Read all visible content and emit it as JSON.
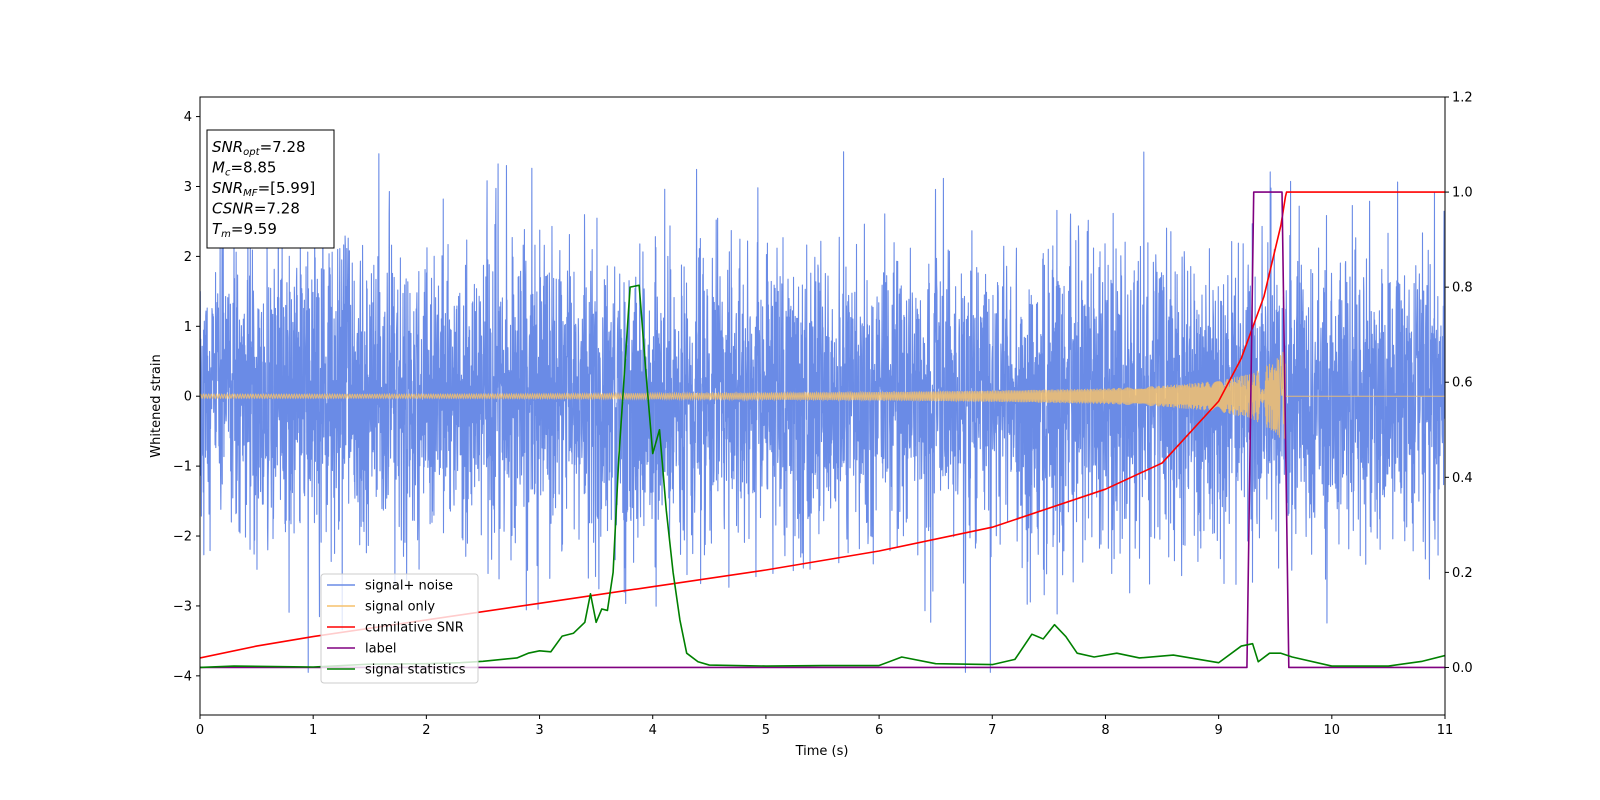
{
  "chart_data": {
    "type": "line",
    "xlabel": "Time (s)",
    "ylabel": "Whitened strain",
    "xlim": [
      0,
      11
    ],
    "ylim_left": [
      -4.56,
      4.28
    ],
    "ylim_right": [
      -0.1,
      1.2
    ],
    "x_ticks": [
      0,
      1,
      2,
      3,
      4,
      5,
      6,
      7,
      8,
      9,
      10,
      11
    ],
    "y_ticks_left": [
      -4,
      -3,
      -2,
      -1,
      0,
      1,
      2,
      3,
      4
    ],
    "y_ticks_right": [
      0.0,
      0.2,
      0.4,
      0.6,
      0.8,
      1.0,
      1.2
    ],
    "x_tick_labels": [
      "0",
      "1",
      "2",
      "3",
      "4",
      "5",
      "6",
      "7",
      "8",
      "9",
      "10",
      "11"
    ],
    "y_tick_labels_left": [
      "−4",
      "−3",
      "−2",
      "−1",
      "0",
      "1",
      "2",
      "3",
      "4"
    ],
    "y_tick_labels_right": [
      "0.0",
      "0.2",
      "0.4",
      "0.6",
      "0.8",
      "1.0",
      "1.2"
    ],
    "grid": false,
    "legend_position": "lower-left",
    "colors": {
      "signal_noise": "#6a8be6",
      "signal_only": "#f5c16c",
      "cumulative_snr": "#ff0000",
      "label": "#800080",
      "signal_statistics": "#008000"
    },
    "series": [
      {
        "name": "signal+ noise",
        "axis": "left",
        "note": "dense whitened noise, approx. Gaussian, extremes about -3.95 to 3.88",
        "envelope_y": [
          -3.95,
          3.88
        ]
      },
      {
        "name": "signal only",
        "axis": "left",
        "amplitude_x": [
          0,
          2,
          4,
          6,
          7,
          8,
          8.5,
          9,
          9.3,
          9.5,
          9.59,
          9.6,
          11
        ],
        "amplitude_y": [
          0.03,
          0.03,
          0.04,
          0.06,
          0.08,
          0.11,
          0.15,
          0.22,
          0.33,
          0.52,
          0.7,
          0,
          0
        ]
      },
      {
        "name": "cumilative SNR",
        "axis": "right",
        "x": [
          0,
          0.5,
          1,
          2,
          3,
          4,
          5,
          6,
          7,
          8,
          8.5,
          9,
          9.2,
          9.4,
          9.5,
          9.55,
          9.59,
          9.6,
          10,
          11
        ],
        "y": [
          0.02,
          0.045,
          0.065,
          0.1,
          0.135,
          0.17,
          0.205,
          0.245,
          0.295,
          0.375,
          0.43,
          0.56,
          0.65,
          0.78,
          0.88,
          0.93,
          0.99,
          1.0,
          1.0,
          1.0
        ]
      },
      {
        "name": "label",
        "axis": "right",
        "x": [
          0,
          9.25,
          9.31,
          9.56,
          9.62,
          11
        ],
        "y": [
          0,
          0,
          1,
          1,
          0,
          0
        ]
      },
      {
        "name": "signal statistics",
        "axis": "right",
        "x": [
          0,
          0.3,
          1,
          1.5,
          2,
          2.3,
          2.5,
          2.8,
          2.9,
          3.0,
          3.1,
          3.2,
          3.3,
          3.4,
          3.45,
          3.5,
          3.55,
          3.6,
          3.65,
          3.7,
          3.8,
          3.88,
          3.94,
          4.0,
          4.06,
          4.12,
          4.18,
          4.24,
          4.3,
          4.4,
          4.5,
          5,
          5.5,
          6,
          6.2,
          6.5,
          7,
          7.2,
          7.35,
          7.45,
          7.55,
          7.65,
          7.75,
          7.9,
          8.1,
          8.3,
          8.6,
          9.0,
          9.2,
          9.3,
          9.35,
          9.45,
          9.55,
          9.65,
          10,
          10.5,
          10.8,
          11
        ],
        "y": [
          0.0,
          0.003,
          0.001,
          0.007,
          0.008,
          0.01,
          0.013,
          0.02,
          0.03,
          0.035,
          0.033,
          0.066,
          0.072,
          0.095,
          0.155,
          0.095,
          0.123,
          0.12,
          0.2,
          0.44,
          0.8,
          0.804,
          0.62,
          0.45,
          0.5,
          0.33,
          0.2,
          0.1,
          0.03,
          0.012,
          0.005,
          0.003,
          0.004,
          0.004,
          0.022,
          0.008,
          0.006,
          0.017,
          0.07,
          0.06,
          0.09,
          0.065,
          0.03,
          0.022,
          0.03,
          0.02,
          0.026,
          0.01,
          0.045,
          0.05,
          0.012,
          0.03,
          0.03,
          0.022,
          0.003,
          0.003,
          0.013,
          0.025
        ]
      }
    ],
    "legend": [
      {
        "label": "signal+ noise",
        "color": "#6a8be6"
      },
      {
        "label": "signal only",
        "color": "#f5c16c"
      },
      {
        "label": "cumilative SNR",
        "color": "#ff0000"
      },
      {
        "label": "label",
        "color": "#800080"
      },
      {
        "label": "signal statistics",
        "color": "#008000"
      }
    ],
    "annotation": [
      {
        "base": "SNR",
        "sub": "opt",
        "value": "=7.28"
      },
      {
        "base": "M",
        "sub": "c",
        "value": "=8.85"
      },
      {
        "base": "SNR",
        "sub": "MF",
        "value": "=[5.99]"
      },
      {
        "base": "CSNR",
        "sub": "",
        "value": "=7.28"
      },
      {
        "base": "T",
        "sub": "m",
        "value": "=9.59"
      }
    ]
  }
}
